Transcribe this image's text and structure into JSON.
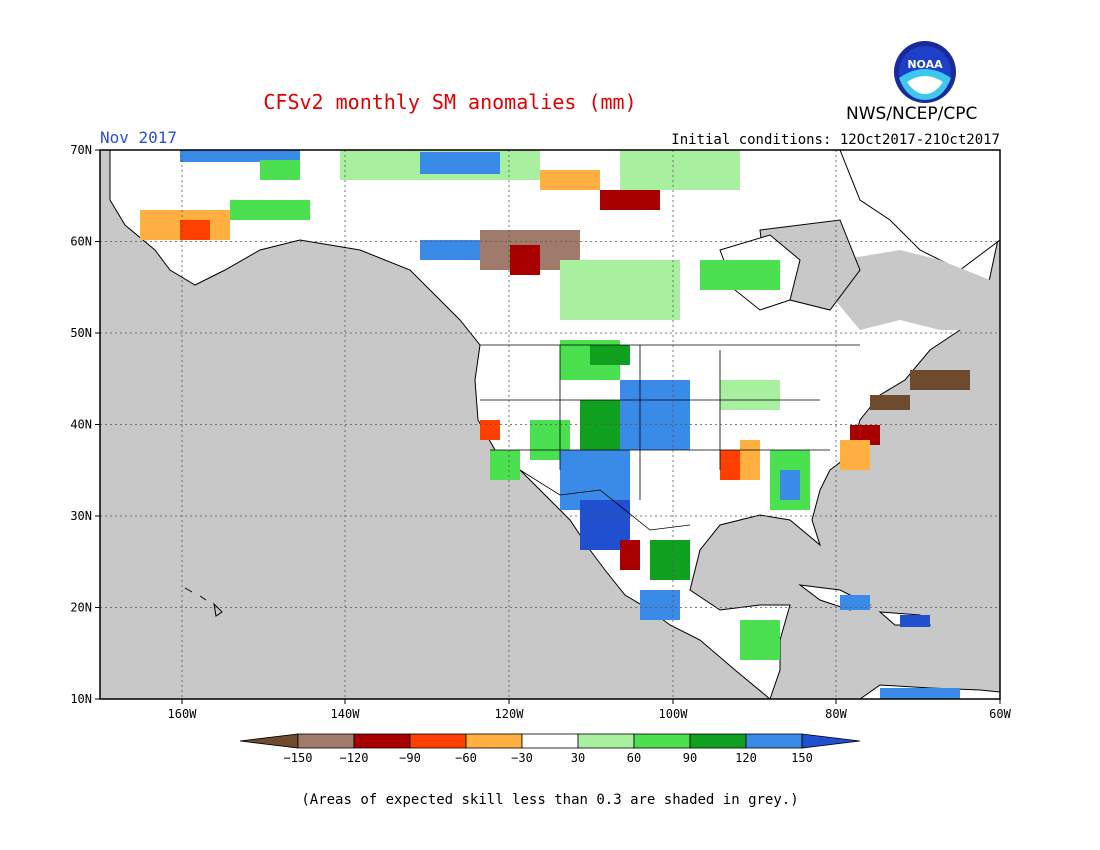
{
  "title": "CFSv2 monthly SM anomalies (mm)",
  "period": "Nov 2017",
  "initial_conditions": "Initial conditions: 12Oct2017-21Oct2017",
  "agency": "NWS/NCEP/CPC",
  "logo_text": "NOAA",
  "note": "(Areas of expected skill less than 0.3 are shaded in grey.)",
  "lat_labels": [
    "70N",
    "60N",
    "50N",
    "40N",
    "30N",
    "20N",
    "10N"
  ],
  "lon_labels": [
    "160W",
    "140W",
    "120W",
    "100W",
    "80W",
    "60W"
  ],
  "colorbar": {
    "labels": [
      "−150",
      "−120",
      "−90",
      "−60",
      "−30",
      "30",
      "60",
      "90",
      "120",
      "150"
    ],
    "colors": [
      "#6e4a2e",
      "#a07a6a",
      "#a80000",
      "#ff4000",
      "#ffb040",
      "#ffffff",
      "#a8f0a0",
      "#4ae050",
      "#10a020",
      "#3a8ae8",
      "#2050d0"
    ]
  },
  "colors": {
    "land_grey": "#c8c8c8",
    "ocean_grey": "#c8c8c8",
    "white_band": "#ffffff"
  }
}
